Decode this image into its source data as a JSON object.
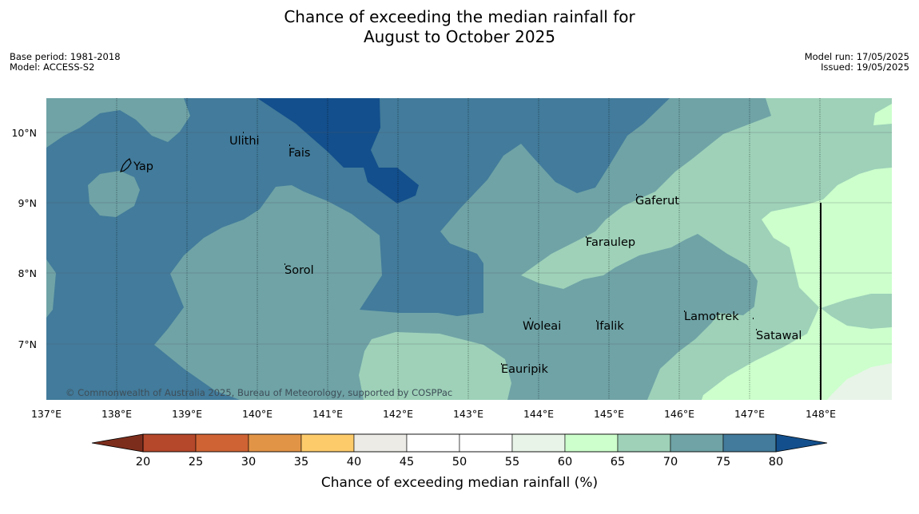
{
  "title": [
    "Chance of exceeding the median rainfall for",
    "August to October 2025"
  ],
  "meta_left": [
    "Base period: 1981-2018",
    "Model: ACCESS-S2"
  ],
  "meta_right": [
    "Model run: 17/05/2025",
    "Issued: 19/05/2025"
  ],
  "copyright": "© Commonwealth of Australia 2025, Bureau of Meteorology, supported by COSPPac",
  "map": {
    "lon_labels": [
      "137°E",
      "138°E",
      "139°E",
      "140°E",
      "141°E",
      "142°E",
      "143°E",
      "144°E",
      "145°E",
      "146°E",
      "147°E",
      "148°E"
    ],
    "lat_labels": [
      "10°N",
      "9°N",
      "8°N",
      "7°N"
    ],
    "places": [
      "Ulithi",
      "Fais",
      "Yap",
      "Gaferut",
      "Faraulep",
      "Sorol",
      "Lamotrek",
      "Woleai",
      "Ifalik",
      "Satawal",
      "Eauripik"
    ]
  },
  "colorbar": {
    "ticks": [
      "20",
      "25",
      "30",
      "35",
      "40",
      "45",
      "50",
      "55",
      "60",
      "65",
      "70",
      "75",
      "80"
    ],
    "colors": [
      "#7d2d1c",
      "#b5472a",
      "#cf6333",
      "#e29446",
      "#fecb6b",
      "#ecebe6",
      "#ffffff",
      "#ffffff",
      "#e8f4e8",
      "#ccffcc",
      "#9ed1b8",
      "#6fa3a6",
      "#427b9b",
      "#134f8c"
    ],
    "label": "Chance of exceeding median rainfall (%)"
  }
}
